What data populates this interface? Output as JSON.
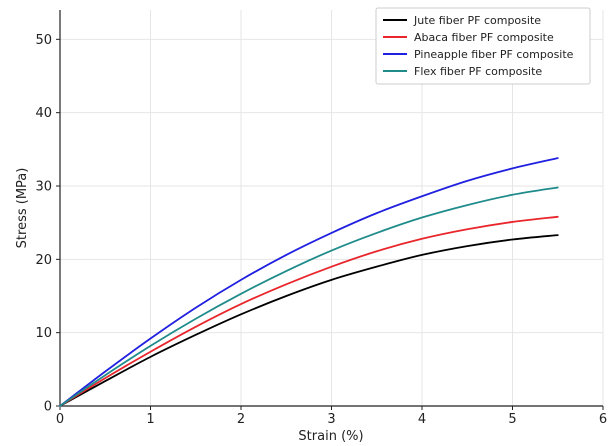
{
  "chart_data": {
    "type": "line",
    "xlabel": "Strain (%)",
    "ylabel": "Stress (MPa)",
    "xlim": [
      0,
      6
    ],
    "ylim": [
      0,
      54
    ],
    "xticks": [
      0,
      1,
      2,
      3,
      4,
      5,
      6
    ],
    "yticks": [
      0,
      10,
      20,
      30,
      40,
      50
    ],
    "grid": true,
    "legend_position": "top-right",
    "x": [
      0,
      0.5,
      1,
      1.5,
      2,
      2.5,
      3,
      3.5,
      4,
      4.5,
      5,
      5.5
    ],
    "series": [
      {
        "name": "Jute fiber PF composite",
        "color": "#000000",
        "values": [
          0,
          3.4,
          6.7,
          9.7,
          12.5,
          15.0,
          17.2,
          19.0,
          20.6,
          21.8,
          22.7,
          23.3
        ]
      },
      {
        "name": "Abaca fiber PF composite",
        "color": "#e8262c",
        "values": [
          0,
          3.8,
          7.4,
          10.8,
          13.9,
          16.6,
          19.0,
          21.1,
          22.8,
          24.1,
          25.1,
          25.8
        ]
      },
      {
        "name": "Pineapple fiber PF composite",
        "color": "#2020e0",
        "values": [
          0,
          4.7,
          9.2,
          13.4,
          17.2,
          20.6,
          23.6,
          26.3,
          28.6,
          30.7,
          32.4,
          33.8
        ]
      },
      {
        "name": "Flex fiber PF composite",
        "color": "#1f8b8b",
        "values": [
          0,
          4.2,
          8.2,
          11.9,
          15.3,
          18.4,
          21.2,
          23.6,
          25.7,
          27.4,
          28.8,
          29.8
        ]
      }
    ]
  }
}
